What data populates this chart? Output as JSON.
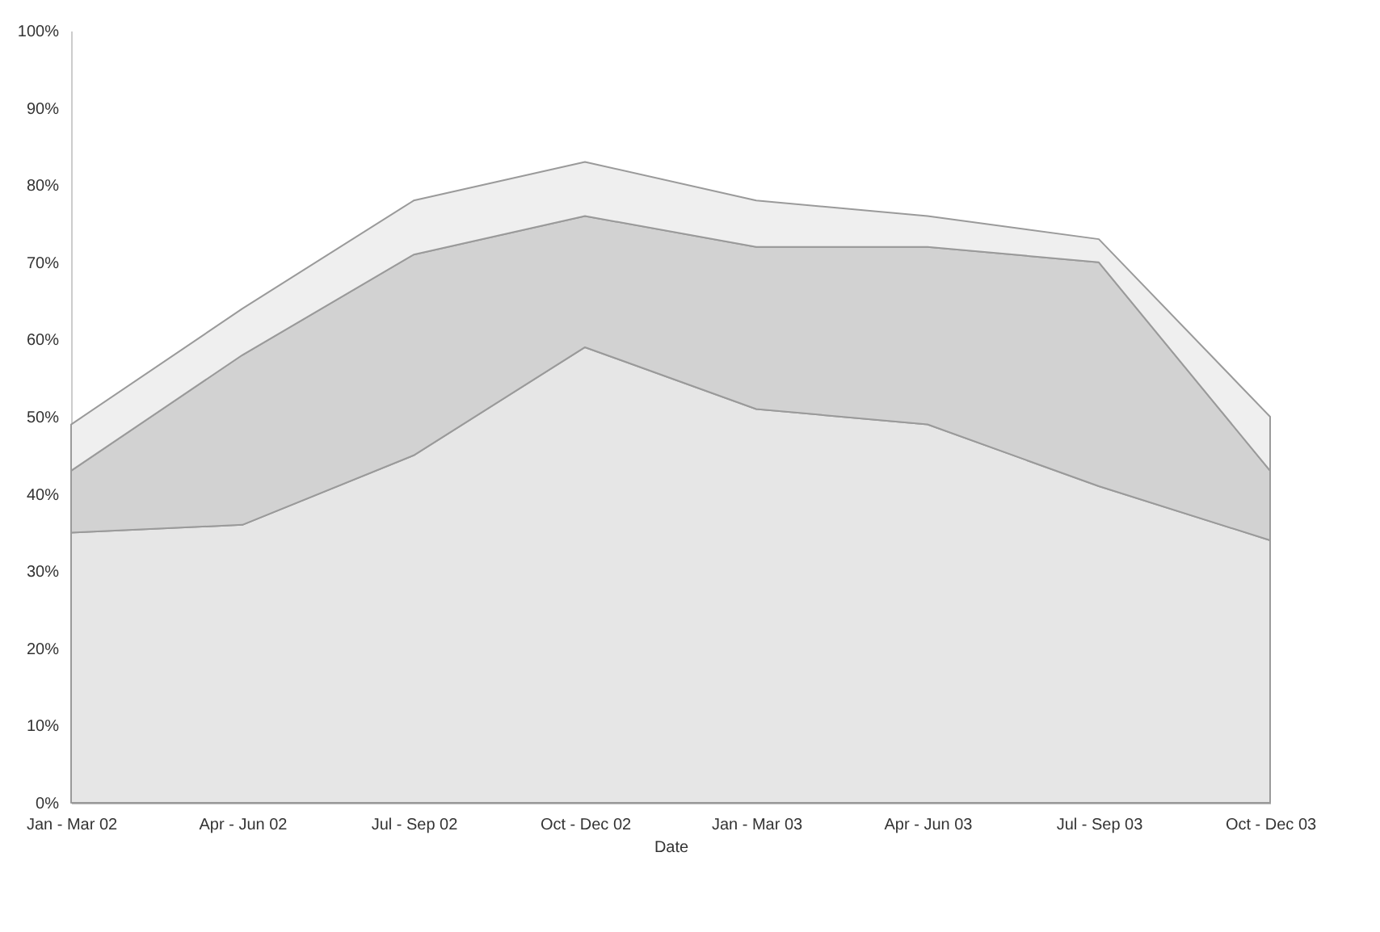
{
  "chart_data": {
    "type": "area",
    "stacked": true,
    "xlabel": "Date",
    "categories": [
      "Jan - Mar 02",
      "Apr - Jun 02",
      "Jul - Sep 02",
      "Oct - Dec 02",
      "Jan - Mar 03",
      "Apr - Jun 03",
      "Jul - Sep 03",
      "Oct - Dec 03"
    ],
    "series": [
      {
        "color": "#e6e6e6",
        "values": [
          35,
          36,
          45,
          59,
          51,
          49,
          41,
          34
        ]
      },
      {
        "color": "#d2d2d2",
        "values": [
          8,
          22,
          26,
          17,
          21,
          23,
          29,
          9
        ]
      },
      {
        "color": "#efefef",
        "values": [
          6,
          6,
          7,
          7,
          6,
          4,
          3,
          7
        ]
      }
    ],
    "ylim": [
      0,
      100
    ],
    "yticks": [
      {
        "value": 0,
        "label": "0%"
      },
      {
        "value": 10,
        "label": "10%"
      },
      {
        "value": 20,
        "label": "20%"
      },
      {
        "value": 30,
        "label": "30%"
      },
      {
        "value": 40,
        "label": "40%"
      },
      {
        "value": 50,
        "label": "50%"
      },
      {
        "value": 60,
        "label": "60%"
      },
      {
        "value": 70,
        "label": "70%"
      },
      {
        "value": 80,
        "label": "80%"
      },
      {
        "value": 90,
        "label": "90%"
      },
      {
        "value": 100,
        "label": "100%"
      }
    ],
    "grid": false,
    "legend": false
  }
}
